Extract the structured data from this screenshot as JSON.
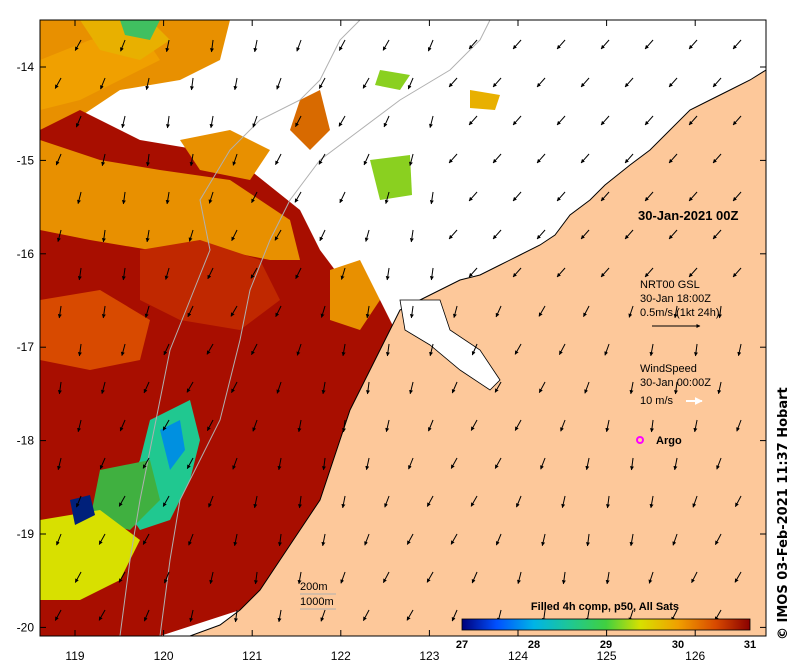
{
  "map": {
    "date_label": "30-Jan-2021 00Z",
    "lat_ticks": [
      "-14",
      "-15",
      "-16",
      "-17",
      "-18",
      "-19",
      "-20"
    ],
    "lon_ticks": [
      "119",
      "120",
      "121",
      "122",
      "123",
      "124",
      "125",
      "126"
    ],
    "current_legend": {
      "line1": "NRT00 GSL",
      "line2": "30-Jan 18:00Z",
      "line3": "0.5m/s (1kt 24h)"
    },
    "wind_legend": {
      "line1": "WindSpeed",
      "line2": "30-Jan 00:00Z",
      "line3": "10 m/s"
    },
    "argo_label": "Argo",
    "depth_contours": {
      "line1": "200m",
      "line2": "1000m"
    },
    "colorbar": {
      "title": "Filled 4h comp, p50, All Sats",
      "ticks": [
        "27",
        "28",
        "29",
        "30",
        "31"
      ]
    },
    "credit": "© IMOS 03-Feb-2021 11:37 Hobart",
    "colors": {
      "land": "#fdc89a",
      "sst_hot": "#a80e00",
      "sst_warm": "#d84a00",
      "sst_mid": "#f0a000",
      "sst_cool": "#40c060",
      "argo": "#ff00ff"
    }
  }
}
